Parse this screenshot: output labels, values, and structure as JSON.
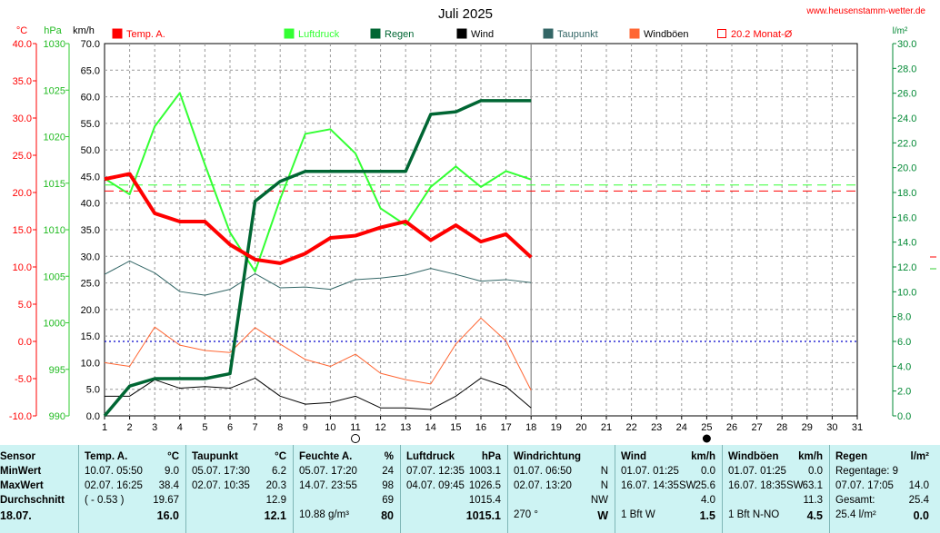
{
  "title": "Juli 2025",
  "site": "www.heusenstamm-wetter.de",
  "axes": {
    "temp_unit": "°C",
    "press_unit": "hPa",
    "wind_unit": "km/h",
    "rain_unit": "l/m²",
    "temp_ticks": [
      "40.0",
      "35.0",
      "30.0",
      "25.0",
      "20.0",
      "15.0",
      "10.0",
      "5.0",
      "0.0",
      "-5.0",
      "-10.0"
    ],
    "press_ticks": [
      "1030",
      "1025",
      "1020",
      "1015",
      "1010",
      "1005",
      "1000",
      "995",
      "990"
    ],
    "wind_ticks": [
      "70.0",
      "65.0",
      "60.0",
      "55.0",
      "50.0",
      "45.0",
      "40.0",
      "35.0",
      "30.0",
      "25.0",
      "20.0",
      "15.0",
      "10.0",
      "5.0",
      "0.0"
    ],
    "rain_ticks": [
      "30.0",
      "28.0",
      "26.0",
      "24.0",
      "22.0",
      "20.0",
      "18.0",
      "16.0",
      "14.0",
      "12.0",
      "10.0",
      "8.0",
      "6.0",
      "4.0",
      "2.0",
      "0.0"
    ],
    "day_ticks": [
      "1",
      "2",
      "3",
      "4",
      "5",
      "6",
      "7",
      "8",
      "9",
      "10",
      "11",
      "12",
      "13",
      "14",
      "15",
      "16",
      "17",
      "18",
      "19",
      "20",
      "21",
      "22",
      "23",
      "24",
      "25",
      "26",
      "27",
      "28",
      "29",
      "30",
      "31"
    ]
  },
  "legend": [
    {
      "label": "Temp. A.",
      "color": "#ff0000",
      "kind": "solid",
      "text_color": "#ff0000"
    },
    {
      "label": "",
      "color": "#ffffff",
      "kind": "box",
      "text_color": "#000000"
    },
    {
      "label": "Luftdruck",
      "color": "#33ff33",
      "kind": "solid",
      "text_color": "#33ff33"
    },
    {
      "label": "Regen",
      "color": "#006633",
      "kind": "solid",
      "text_color": "#006633"
    },
    {
      "label": "Wind",
      "color": "#000000",
      "kind": "solid",
      "text_color": "#000000"
    },
    {
      "label": "Taupunkt",
      "color": "#336666",
      "kind": "solid",
      "text_color": "#336666"
    },
    {
      "label": "Windböen",
      "color": "#ff6633",
      "kind": "solid",
      "text_color": "#000000"
    },
    {
      "label": "20.2 Monat-Ø",
      "color": "#ff0000",
      "kind": "box",
      "text_color": "#ff0000"
    }
  ],
  "chart_data": {
    "type": "line",
    "x": [
      1,
      2,
      3,
      4,
      5,
      6,
      7,
      8,
      9,
      10,
      11,
      12,
      13,
      14,
      15,
      16,
      17,
      18
    ],
    "series": [
      {
        "name": "Temp. A.",
        "axis": "°C",
        "color": "#ff0000",
        "values": [
          21.8,
          22.5,
          17.2,
          16.1,
          16.1,
          13.0,
          11.0,
          10.5,
          11.8,
          13.9,
          14.2,
          15.3,
          16.1,
          13.6,
          15.6,
          13.4,
          14.4,
          11.3
        ]
      },
      {
        "name": "Luftdruck",
        "axis": "hPa",
        "color": "#33ff33",
        "values": [
          1015.5,
          1013.8,
          1021.1,
          1024.7,
          1017.0,
          1009.7,
          1005.5,
          1013.3,
          1020.3,
          1020.8,
          1018.2,
          1012.3,
          1010.5,
          1014.6,
          1016.8,
          1014.6,
          1016.3,
          1015.4
        ]
      },
      {
        "name": "Regen",
        "axis": "l/m²",
        "color": "#006633",
        "values": [
          0.0,
          2.4,
          3.0,
          3.0,
          3.0,
          3.4,
          17.3,
          18.9,
          19.7,
          19.7,
          19.7,
          19.7,
          19.7,
          24.3,
          24.5,
          25.4,
          25.4,
          25.4
        ]
      },
      {
        "name": "Wind",
        "axis": "km/h",
        "color": "#000000",
        "values": [
          3.7,
          3.7,
          6.8,
          5.2,
          5.5,
          5.2,
          7.1,
          3.7,
          2.2,
          2.5,
          3.7,
          1.5,
          1.5,
          1.2,
          3.7,
          7.1,
          5.5,
          1.5
        ]
      },
      {
        "name": "Taupunkt",
        "axis": "°C",
        "color": "#336666",
        "values": [
          9.0,
          10.8,
          9.2,
          6.7,
          6.2,
          7.0,
          9.1,
          7.2,
          7.3,
          7.0,
          8.3,
          8.5,
          8.9,
          9.8,
          9.0,
          8.1,
          8.3,
          7.9
        ]
      },
      {
        "name": "Windböen",
        "axis": "km/h",
        "color": "#ff6633",
        "values": [
          10.0,
          9.3,
          16.7,
          13.3,
          12.3,
          11.9,
          16.6,
          13.5,
          10.6,
          9.3,
          11.6,
          8.0,
          6.8,
          6.0,
          13.5,
          18.4,
          14.1,
          4.8
        ]
      }
    ],
    "reference_lines": [
      {
        "name": "20.2 Monat-Ø",
        "axis": "°C",
        "value": 20.2,
        "color": "#ff0000",
        "style": "dashed"
      },
      {
        "axis": "hPa",
        "value": 1014.8,
        "color": "#33ff33",
        "style": "dashed"
      },
      {
        "axis": "°C",
        "value": 0.0,
        "color": "#0000cc",
        "style": "dotted"
      }
    ],
    "ylim_temp": [
      -10,
      40
    ],
    "ylim_press": [
      990,
      1030
    ],
    "ylim_wind": [
      0,
      70
    ],
    "ylim_rain": [
      0,
      30
    ],
    "xlim": [
      1,
      31
    ],
    "grid": true
  },
  "stats": {
    "row_labels": [
      "Sensor",
      "MinWert",
      "MaxWert",
      "Durchschnitt",
      "18.07."
    ],
    "columns": [
      {
        "h1": "Temp. A.",
        "h2": "°C",
        "rows": [
          [
            "10.07.  05:50",
            "9.0"
          ],
          [
            "02.07.  16:25",
            "38.4"
          ],
          [
            "( - 0.53 )",
            "19.67"
          ],
          [
            "",
            "16.0"
          ]
        ]
      },
      {
        "h1": "Taupunkt",
        "h2": "°C",
        "rows": [
          [
            "05.07.  17:30",
            "6.2"
          ],
          [
            "02.07.  10:35",
            "20.3"
          ],
          [
            "",
            "12.9"
          ],
          [
            "",
            "12.1"
          ]
        ]
      },
      {
        "h1": "Feuchte A.",
        "h2": "%",
        "rows": [
          [
            "05.07.  17:20",
            "24"
          ],
          [
            "14.07.  23:55",
            "98"
          ],
          [
            "",
            "69"
          ],
          [
            "10.88 g/m³",
            "80"
          ]
        ]
      },
      {
        "h1": "Luftdruck",
        "h2": "hPa",
        "rows": [
          [
            "07.07.  12:35",
            "1003.1"
          ],
          [
            "04.07.  09:45",
            "1026.5"
          ],
          [
            "",
            "1015.4"
          ],
          [
            "",
            "1015.1"
          ]
        ]
      },
      {
        "h1": "Windrichtung",
        "h2": "",
        "rows": [
          [
            "01.07.  06:50",
            "N"
          ],
          [
            "02.07.  13:20",
            "N"
          ],
          [
            "",
            "NW"
          ],
          [
            "270 °",
            "W"
          ]
        ]
      },
      {
        "h1": "Wind",
        "h2": "km/h",
        "rows": [
          [
            "01.07.  01:25",
            "0.0"
          ],
          [
            "16.07.  14:35SW",
            "25.6"
          ],
          [
            "",
            "4.0"
          ],
          [
            "1 Bft W",
            "1.5"
          ]
        ]
      },
      {
        "h1": "Windböen",
        "h2": "km/h",
        "rows": [
          [
            "01.07.  01:25",
            "0.0"
          ],
          [
            "16.07.  18:35SW",
            "63.1"
          ],
          [
            "",
            "11.3"
          ],
          [
            "1 Bft N-NO",
            "4.5"
          ]
        ]
      },
      {
        "h1": "Regen",
        "h2": "l/m²",
        "rows": [
          [
            "Regentage: 9",
            ""
          ],
          [
            "07.07.  17:05",
            "14.0"
          ],
          [
            "Gesamt:",
            "25.4"
          ],
          [
            "25.4 l/m²",
            "0.0"
          ]
        ]
      }
    ]
  }
}
